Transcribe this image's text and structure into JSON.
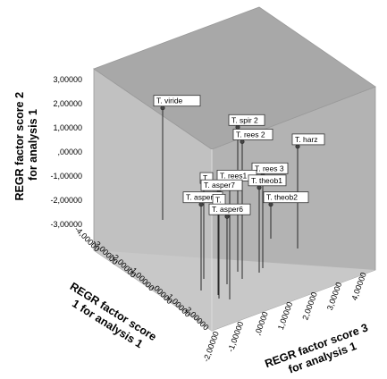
{
  "chart_data": {
    "type": "scatter",
    "subtype": "3d-drop-line",
    "title": "",
    "axes": {
      "y": {
        "label_lines": [
          "REGR factor score   2",
          "for analysis 1"
        ],
        "ticks": [
          "3,00000",
          "2,00000",
          "1,00000",
          ",00000",
          "-1,00000",
          "-2,00000",
          "-3,00000"
        ]
      },
      "x": {
        "label_lines": [
          "REGR factor score",
          "1 for analysis 1"
        ],
        "ticks": [
          "-4,00000",
          "-3,00000",
          "-2,00000",
          "-1,00000",
          ",00000",
          "1,00000",
          "2,00000"
        ]
      },
      "z": {
        "label_lines": [
          "REGR factor score   3",
          "for analysis 1"
        ],
        "ticks": [
          "-2,00000",
          "-1,00000",
          ",00000",
          "1,00000",
          "2,00000",
          "3,00000",
          "4,00000"
        ]
      }
    },
    "wall_colors": {
      "back": "#b3b3b3",
      "left": "#c1c1c1",
      "floor": "#c8c8c8",
      "frame": "#a8a8a8"
    },
    "points": [
      {
        "label": "T. viride",
        "y": 1.9
      },
      {
        "label": "T. spir 2",
        "y": 1.1
      },
      {
        "label": "T. rees 2",
        "y": 0.5
      },
      {
        "label": "T. harz",
        "y": 0.3
      },
      {
        "label": "T. rees 3",
        "y": -0.9
      },
      {
        "label": "T. rees1",
        "y": -1.2
      },
      {
        "label": "T. theob1",
        "y": -1.4
      },
      {
        "label": "T.",
        "y": -1.3
      },
      {
        "label": "T. asper7",
        "y": -1.6
      },
      {
        "label": "T. asper1",
        "y": -2.1
      },
      {
        "label": "T. theob2",
        "y": -2.1
      },
      {
        "label": "T.",
        "y": -2.2
      },
      {
        "label": "T. asper6",
        "y": -2.6
      }
    ]
  }
}
